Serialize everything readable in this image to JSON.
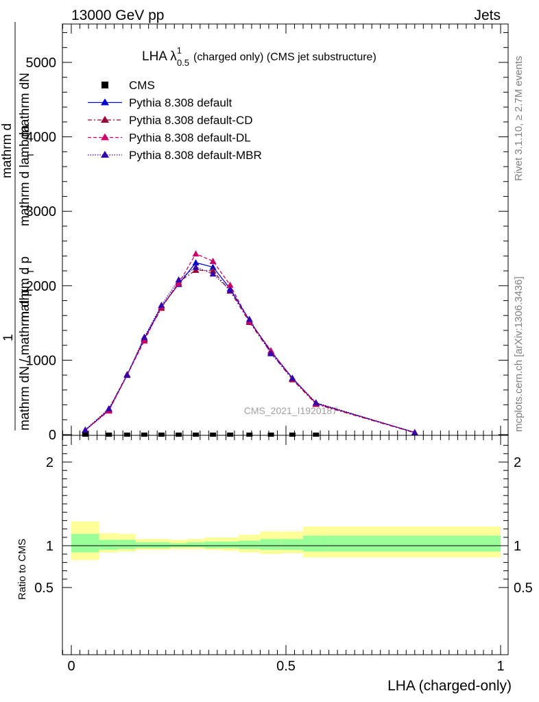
{
  "header": {
    "left": "13000 GeV pp",
    "right": "Jets"
  },
  "side_labels": {
    "rivet": "Rivet 3.1.10, ≥ 2.7M events",
    "mcplots": "mcplots.cern.ch [arXiv:1306.3436]"
  },
  "chart_data": [
    {
      "type": "line",
      "title_main": "LHA λ",
      "title_sup": "1",
      "title_sub": "0.5",
      "title_rest": "(charged only) (CMS jet substructure)",
      "watermark": "CMS_2021_I1920187",
      "ylabel_lines": [
        "mathrm dN / mathrm d p",
        "T",
        "mathrm d lambda",
        "mathrm d",
        "mathrm d p",
        "T",
        "mathrm dN",
        "1"
      ],
      "ylim": [
        0,
        5500
      ],
      "xlim": [
        -0.02,
        1.0
      ],
      "y_ticks": [
        {
          "value": 0,
          "label": "0"
        },
        {
          "value": 1000,
          "label": "1000"
        },
        {
          "value": 2000,
          "label": "2000"
        },
        {
          "value": 3000,
          "label": "3000"
        },
        {
          "value": 4000,
          "label": "4000"
        },
        {
          "value": 5000,
          "label": "5000"
        }
      ],
      "legend": [
        {
          "label": "CMS",
          "color": "#000000",
          "style": "marker-square"
        },
        {
          "label": "Pythia 8.308 default",
          "color": "#0000cc",
          "style": "solid"
        },
        {
          "label": "Pythia 8.308 default-CD",
          "color": "#990033",
          "style": "dashdot"
        },
        {
          "label": "Pythia 8.308 default-DL",
          "color": "#cc0066",
          "style": "dashed"
        },
        {
          "label": "Pythia 8.308 default-MBR",
          "color": "#3300aa",
          "style": "dotted"
        }
      ],
      "cms_points": {
        "x": [
          0.0325,
          0.0875,
          0.13,
          0.17,
          0.21,
          0.25,
          0.29,
          0.33,
          0.37,
          0.415,
          0.465,
          0.515,
          0.57
        ],
        "y": [
          0,
          0,
          0,
          0,
          0,
          0,
          0,
          0,
          0,
          0,
          0,
          0,
          0
        ]
      },
      "series": [
        {
          "name": "Pythia 8.308 default",
          "color": "#0000cc",
          "dash": "",
          "x": [
            0.0325,
            0.0875,
            0.13,
            0.17,
            0.21,
            0.25,
            0.29,
            0.33,
            0.37,
            0.415,
            0.465,
            0.515,
            0.57,
            0.8
          ],
          "y": [
            60,
            330,
            800,
            1290,
            1720,
            2020,
            2310,
            2250,
            1960,
            1530,
            1120,
            760,
            420,
            30
          ]
        },
        {
          "name": "Pythia 8.308 default-CD",
          "color": "#990033",
          "dash": "6,3,2,3",
          "x": [
            0.0325,
            0.0875,
            0.13,
            0.17,
            0.21,
            0.25,
            0.29,
            0.33,
            0.37,
            0.415,
            0.465,
            0.515,
            0.57,
            0.8
          ],
          "y": [
            55,
            340,
            810,
            1280,
            1700,
            2050,
            2210,
            2200,
            1930,
            1510,
            1100,
            740,
            410,
            25
          ]
        },
        {
          "name": "Pythia 8.308 default-DL",
          "color": "#cc0066",
          "dash": "5,3",
          "x": [
            0.0325,
            0.0875,
            0.13,
            0.17,
            0.21,
            0.25,
            0.29,
            0.33,
            0.37,
            0.415,
            0.465,
            0.515,
            0.57,
            0.8
          ],
          "y": [
            60,
            320,
            800,
            1260,
            1720,
            2030,
            2430,
            2330,
            2010,
            1520,
            1130,
            750,
            420,
            30
          ]
        },
        {
          "name": "Pythia 8.308 default-MBR",
          "color": "#3300aa",
          "dash": "1.5,2",
          "x": [
            0.0325,
            0.0875,
            0.13,
            0.17,
            0.21,
            0.25,
            0.29,
            0.33,
            0.37,
            0.415,
            0.465,
            0.515,
            0.57,
            0.8
          ],
          "y": [
            65,
            350,
            800,
            1310,
            1740,
            2080,
            2250,
            2160,
            1940,
            1550,
            1090,
            760,
            430,
            28
          ]
        }
      ]
    },
    {
      "type": "area",
      "ylabel": "Ratio to CMS",
      "xlabel": "LHA (charged-only)",
      "ylim": [
        0.35,
        2.3
      ],
      "xlim": [
        -0.02,
        1.0
      ],
      "y_ticks": [
        {
          "value": 0.5,
          "label": "0.5"
        },
        {
          "value": 1,
          "label": "1"
        },
        {
          "value": 2,
          "label": "2"
        }
      ],
      "x_ticks": [
        {
          "value": 0,
          "label": "0"
        },
        {
          "value": 0.5,
          "label": "0.5"
        },
        {
          "value": 1,
          "label": "1"
        }
      ],
      "bands": {
        "edges": [
          0.0,
          0.065,
          0.11,
          0.15,
          0.19,
          0.23,
          0.27,
          0.31,
          0.35,
          0.39,
          0.44,
          0.49,
          0.54,
          0.6,
          1.0
        ],
        "outer_color": "#ffff99",
        "inner_color": "#99ff99",
        "outer_low": [
          0.83,
          0.92,
          0.93,
          0.95,
          0.95,
          0.96,
          0.96,
          0.95,
          0.94,
          0.92,
          0.9,
          0.91,
          0.86,
          0.86
        ],
        "outer_high": [
          1.29,
          1.15,
          1.14,
          1.08,
          1.08,
          1.07,
          1.08,
          1.1,
          1.1,
          1.13,
          1.17,
          1.17,
          1.23,
          1.23
        ],
        "inner_low": [
          0.92,
          0.95,
          0.96,
          0.97,
          0.97,
          0.98,
          0.98,
          0.97,
          0.97,
          0.96,
          0.95,
          0.95,
          0.93,
          0.93
        ],
        "inner_high": [
          1.14,
          1.07,
          1.07,
          1.04,
          1.04,
          1.03,
          1.04,
          1.05,
          1.05,
          1.06,
          1.08,
          1.08,
          1.12,
          1.12
        ]
      }
    }
  ]
}
